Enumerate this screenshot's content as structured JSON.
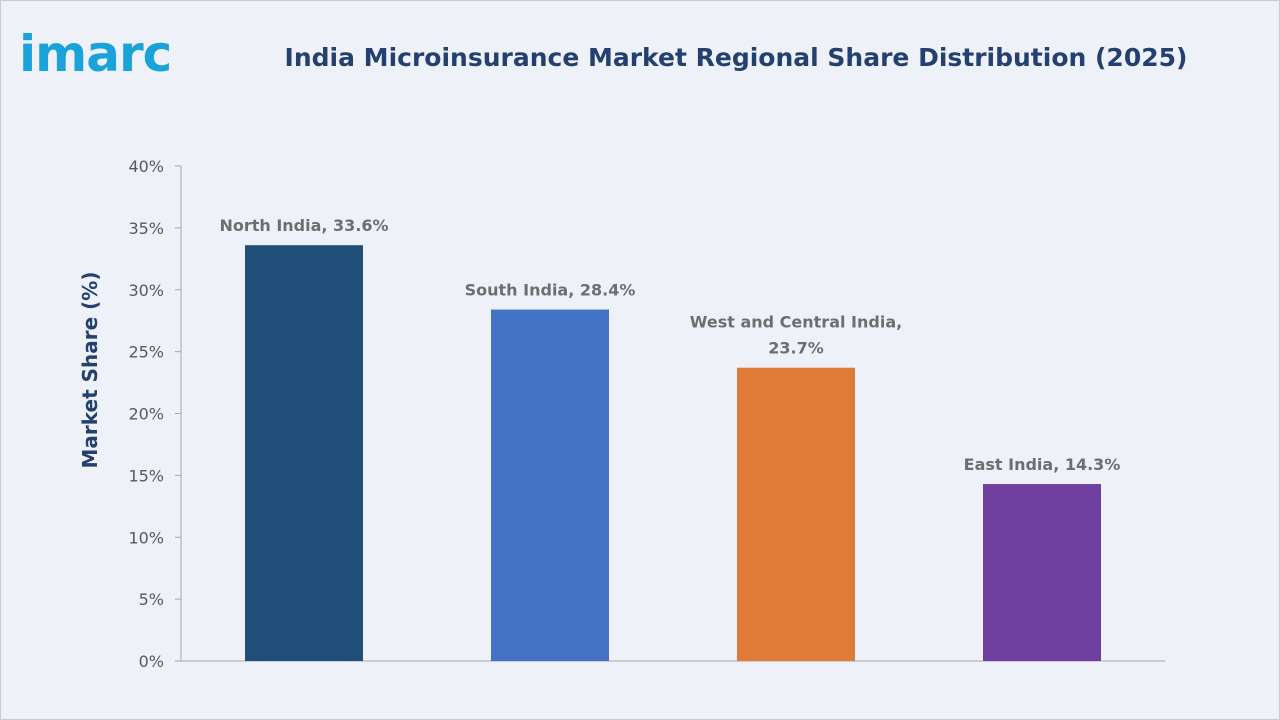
{
  "brand": {
    "logo_text": "imarc",
    "logo_color": "#1aa3d8"
  },
  "chart_data": {
    "type": "bar",
    "title": "India Microinsurance Market Regional Share Distribution (2025)",
    "ylabel": "Market Share (%)",
    "xlabel": "",
    "ylim": [
      0,
      40
    ],
    "yticks": [
      0,
      5,
      10,
      15,
      20,
      25,
      30,
      35,
      40
    ],
    "ytick_labels": [
      "0%",
      "5%",
      "10%",
      "15%",
      "20%",
      "25%",
      "30%",
      "35%",
      "40%"
    ],
    "grid": false,
    "legend": "none",
    "categories": [
      "North India",
      "South India",
      "West and Central India",
      "East India"
    ],
    "values": [
      33.6,
      28.4,
      23.7,
      14.3
    ],
    "data_labels": [
      [
        "North India, 33.6%"
      ],
      [
        "South India, 28.4%"
      ],
      [
        "West and Central India,",
        "23.7%"
      ],
      [
        "East India, 14.3%"
      ]
    ],
    "colors": [
      "#1f4e79",
      "#4472c4",
      "#e07b39",
      "#7040a0"
    ]
  }
}
